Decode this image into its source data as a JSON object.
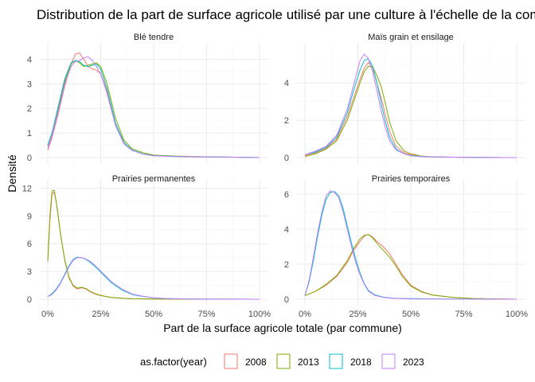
{
  "chart_data": {
    "type": "line",
    "title": "Distribution de la part de surface agricole utilisé par une culture à l'échelle de la commune",
    "xlabel": "Part de la surface agricole totale (par commune)",
    "ylabel": "Densité",
    "legend_title": "as.factor(year)",
    "legend_position": "bottom",
    "grid": true,
    "x_ticks": [
      "0%",
      "25%",
      "50%",
      "75%",
      "100%"
    ],
    "xlim": [
      0,
      1
    ],
    "series_colors": {
      "2008": "#F8766D",
      "2013": "#7CAE00",
      "2018": "#00BFC4",
      "2023": "#C77CFF"
    },
    "legend_entries": [
      "2008",
      "2013",
      "2018",
      "2023"
    ],
    "panels": [
      {
        "name": "Blé tendre",
        "ylim": [
          0,
          4.4
        ],
        "y_ticks": [
          0,
          1,
          2,
          3,
          4
        ],
        "series": [
          {
            "name": "2008",
            "x": [
              0,
              0.02,
              0.05,
              0.08,
              0.11,
              0.13,
              0.15,
              0.17,
              0.19,
              0.21,
              0.23,
              0.25,
              0.28,
              0.32,
              0.36,
              0.4,
              0.45,
              0.5,
              0.6,
              0.7,
              0.85,
              1.0
            ],
            "y": [
              0.3,
              0.8,
              1.8,
              2.9,
              3.8,
              4.2,
              4.25,
              4.0,
              3.7,
              3.6,
              3.55,
              3.4,
              2.7,
              1.4,
              0.6,
              0.3,
              0.15,
              0.08,
              0.05,
              0.03,
              0.02,
              0.0
            ]
          },
          {
            "name": "2013",
            "x": [
              0,
              0.02,
              0.05,
              0.08,
              0.11,
              0.13,
              0.15,
              0.17,
              0.19,
              0.21,
              0.23,
              0.25,
              0.28,
              0.32,
              0.36,
              0.4,
              0.45,
              0.5,
              0.6,
              0.7,
              0.85,
              1.0
            ],
            "y": [
              0.5,
              1.0,
              2.0,
              3.1,
              3.8,
              3.95,
              3.85,
              3.7,
              3.75,
              3.8,
              3.85,
              3.7,
              3.0,
              1.6,
              0.7,
              0.35,
              0.2,
              0.1,
              0.06,
              0.04,
              0.02,
              0.0
            ]
          },
          {
            "name": "2018",
            "x": [
              0,
              0.02,
              0.05,
              0.08,
              0.11,
              0.13,
              0.15,
              0.17,
              0.19,
              0.21,
              0.23,
              0.25,
              0.28,
              0.32,
              0.36,
              0.4,
              0.45,
              0.5,
              0.6,
              0.7,
              0.85,
              1.0
            ],
            "y": [
              0.5,
              1.0,
              2.1,
              3.2,
              3.85,
              3.95,
              3.9,
              3.75,
              3.7,
              3.75,
              3.8,
              3.6,
              2.8,
              1.4,
              0.6,
              0.3,
              0.15,
              0.08,
              0.05,
              0.03,
              0.02,
              0.0
            ]
          },
          {
            "name": "2023",
            "x": [
              0,
              0.02,
              0.05,
              0.08,
              0.11,
              0.13,
              0.15,
              0.17,
              0.19,
              0.21,
              0.23,
              0.25,
              0.28,
              0.32,
              0.36,
              0.4,
              0.45,
              0.5,
              0.6,
              0.7,
              0.85,
              1.0
            ],
            "y": [
              0.4,
              0.9,
              1.9,
              3.0,
              3.7,
              3.9,
              3.95,
              4.05,
              4.1,
              3.95,
              3.7,
              3.4,
              2.6,
              1.3,
              0.55,
              0.28,
              0.14,
              0.07,
              0.04,
              0.03,
              0.02,
              0.0
            ]
          }
        ]
      },
      {
        "name": "Maïs grain et ensilage",
        "ylim": [
          0,
          5.8
        ],
        "y_ticks": [
          0,
          2,
          4
        ],
        "series": [
          {
            "name": "2008",
            "x": [
              0,
              0.05,
              0.1,
              0.15,
              0.2,
              0.23,
              0.26,
              0.28,
              0.3,
              0.32,
              0.34,
              0.36,
              0.38,
              0.4,
              0.43,
              0.47,
              0.5,
              0.55,
              0.6,
              0.7,
              0.8,
              1.0
            ],
            "y": [
              0.1,
              0.25,
              0.5,
              1.0,
              2.2,
              3.2,
              4.2,
              4.8,
              5.1,
              4.8,
              4.0,
              3.2,
              2.3,
              1.4,
              0.6,
              0.25,
              0.15,
              0.07,
              0.04,
              0.02,
              0.01,
              0.0
            ]
          },
          {
            "name": "2013",
            "x": [
              0,
              0.05,
              0.1,
              0.15,
              0.2,
              0.23,
              0.26,
              0.28,
              0.3,
              0.32,
              0.34,
              0.36,
              0.38,
              0.4,
              0.43,
              0.47,
              0.5,
              0.55,
              0.6,
              0.7,
              0.8,
              1.0
            ],
            "y": [
              0.05,
              0.2,
              0.45,
              0.9,
              2.0,
              3.0,
              4.0,
              4.6,
              4.9,
              4.85,
              4.4,
              3.8,
              2.9,
              1.9,
              0.9,
              0.35,
              0.2,
              0.08,
              0.04,
              0.02,
              0.01,
              0.0
            ]
          },
          {
            "name": "2018",
            "x": [
              0,
              0.05,
              0.1,
              0.15,
              0.2,
              0.23,
              0.26,
              0.28,
              0.3,
              0.32,
              0.34,
              0.36,
              0.38,
              0.4,
              0.43,
              0.47,
              0.5,
              0.55,
              0.6,
              0.7,
              0.8,
              1.0
            ],
            "y": [
              0.15,
              0.3,
              0.55,
              1.1,
              2.4,
              3.6,
              4.7,
              5.2,
              5.3,
              4.9,
              4.0,
              2.9,
              1.9,
              1.1,
              0.45,
              0.2,
              0.1,
              0.05,
              0.03,
              0.02,
              0.01,
              0.0
            ]
          },
          {
            "name": "2023",
            "x": [
              0,
              0.05,
              0.1,
              0.15,
              0.2,
              0.23,
              0.26,
              0.28,
              0.3,
              0.32,
              0.34,
              0.36,
              0.38,
              0.4,
              0.43,
              0.47,
              0.5,
              0.55,
              0.6,
              0.7,
              0.8,
              1.0
            ],
            "y": [
              0.15,
              0.35,
              0.6,
              1.2,
              2.6,
              3.9,
              5.2,
              5.55,
              5.3,
              4.6,
              3.6,
              2.5,
              1.6,
              0.9,
              0.4,
              0.2,
              0.12,
              0.06,
              0.03,
              0.02,
              0.01,
              0.0
            ]
          }
        ]
      },
      {
        "name": "Prairies permanentes",
        "ylim": [
          0,
          12.3
        ],
        "y_ticks": [
          0,
          3,
          6,
          9,
          12
        ],
        "series": [
          {
            "name": "2008",
            "x": [
              0,
              0.01,
              0.02,
              0.03,
              0.04,
              0.05,
              0.06,
              0.08,
              0.1,
              0.12,
              0.14,
              0.16,
              0.18,
              0.2,
              0.23,
              0.27,
              0.3,
              0.35,
              0.4,
              0.5,
              0.7,
              1.0
            ],
            "y": [
              4.0,
              8.5,
              11.3,
              11.6,
              10.5,
              8.8,
              7.0,
              4.2,
              2.3,
              1.4,
              1.1,
              1.25,
              1.1,
              0.8,
              0.5,
              0.3,
              0.2,
              0.1,
              0.05,
              0.02,
              0.01,
              0.0
            ]
          },
          {
            "name": "2013",
            "x": [
              0,
              0.01,
              0.02,
              0.03,
              0.04,
              0.05,
              0.06,
              0.08,
              0.1,
              0.12,
              0.14,
              0.16,
              0.18,
              0.2,
              0.23,
              0.27,
              0.3,
              0.35,
              0.4,
              0.5,
              0.7,
              1.0
            ],
            "y": [
              4.2,
              9.0,
              11.7,
              11.8,
              10.6,
              8.9,
              7.1,
              4.3,
              2.4,
              1.5,
              1.2,
              1.3,
              1.15,
              0.85,
              0.55,
              0.32,
              0.2,
              0.1,
              0.05,
              0.02,
              0.01,
              0.0
            ]
          },
          {
            "name": "2018",
            "x": [
              0,
              0.02,
              0.04,
              0.06,
              0.08,
              0.1,
              0.12,
              0.14,
              0.16,
              0.18,
              0.2,
              0.23,
              0.26,
              0.3,
              0.35,
              0.4,
              0.45,
              0.5,
              0.55,
              0.6,
              0.7,
              1.0
            ],
            "y": [
              0.3,
              0.6,
              1.1,
              1.8,
              2.7,
              3.6,
              4.3,
              4.55,
              4.5,
              4.3,
              4.0,
              3.4,
              2.7,
              1.8,
              1.0,
              0.5,
              0.3,
              0.15,
              0.08,
              0.05,
              0.02,
              0.0
            ]
          },
          {
            "name": "2023",
            "x": [
              0,
              0.02,
              0.04,
              0.06,
              0.08,
              0.1,
              0.12,
              0.14,
              0.16,
              0.18,
              0.2,
              0.23,
              0.26,
              0.3,
              0.35,
              0.4,
              0.45,
              0.5,
              0.55,
              0.6,
              0.7,
              1.0
            ],
            "y": [
              0.3,
              0.5,
              1.0,
              1.7,
              2.6,
              3.5,
              4.2,
              4.5,
              4.5,
              4.35,
              4.1,
              3.5,
              2.8,
              1.9,
              1.1,
              0.55,
              0.32,
              0.16,
              0.09,
              0.05,
              0.02,
              0.0
            ]
          }
        ]
      },
      {
        "name": "Prairies temporaires",
        "ylim": [
          0,
          6.5
        ],
        "y_ticks": [
          0,
          2,
          4,
          6
        ],
        "series": [
          {
            "name": "2008",
            "x": [
              0,
              0.05,
              0.1,
              0.15,
              0.2,
              0.23,
              0.26,
              0.28,
              0.3,
              0.32,
              0.34,
              0.37,
              0.4,
              0.43,
              0.46,
              0.5,
              0.55,
              0.6,
              0.7,
              0.8,
              0.9,
              1.0
            ],
            "y": [
              0.2,
              0.45,
              0.8,
              1.3,
              2.1,
              2.8,
              3.3,
              3.6,
              3.7,
              3.55,
              3.3,
              3.0,
              2.6,
              2.0,
              1.4,
              0.8,
              0.45,
              0.25,
              0.1,
              0.04,
              0.02,
              0.0
            ]
          },
          {
            "name": "2013",
            "x": [
              0,
              0.05,
              0.1,
              0.15,
              0.2,
              0.23,
              0.26,
              0.28,
              0.3,
              0.32,
              0.34,
              0.37,
              0.4,
              0.43,
              0.46,
              0.5,
              0.55,
              0.6,
              0.7,
              0.8,
              0.9,
              1.0
            ],
            "y": [
              0.2,
              0.45,
              0.85,
              1.35,
              2.2,
              2.9,
              3.45,
              3.65,
              3.7,
              3.5,
              3.2,
              2.8,
              2.4,
              1.9,
              1.3,
              0.75,
              0.42,
              0.24,
              0.1,
              0.04,
              0.02,
              0.0
            ]
          },
          {
            "name": "2018",
            "x": [
              0,
              0.02,
              0.04,
              0.06,
              0.08,
              0.1,
              0.12,
              0.14,
              0.16,
              0.18,
              0.2,
              0.22,
              0.24,
              0.26,
              0.28,
              0.3,
              0.33,
              0.37,
              0.42,
              0.5,
              0.7,
              1.0
            ],
            "y": [
              0.2,
              1.0,
              2.2,
              3.6,
              4.8,
              5.7,
              6.1,
              6.15,
              5.9,
              5.2,
              4.2,
              3.2,
              2.3,
              1.5,
              0.9,
              0.5,
              0.25,
              0.12,
              0.06,
              0.03,
              0.01,
              0.0
            ]
          },
          {
            "name": "2023",
            "x": [
              0,
              0.02,
              0.04,
              0.06,
              0.08,
              0.1,
              0.12,
              0.14,
              0.16,
              0.18,
              0.2,
              0.22,
              0.24,
              0.26,
              0.28,
              0.3,
              0.33,
              0.37,
              0.42,
              0.5,
              0.7,
              1.0
            ],
            "y": [
              0.2,
              1.1,
              2.4,
              3.8,
              5.0,
              5.9,
              6.2,
              6.1,
              5.8,
              5.0,
              4.0,
              3.0,
              2.1,
              1.4,
              0.85,
              0.45,
              0.22,
              0.1,
              0.05,
              0.02,
              0.01,
              0.0
            ]
          }
        ]
      }
    ]
  }
}
